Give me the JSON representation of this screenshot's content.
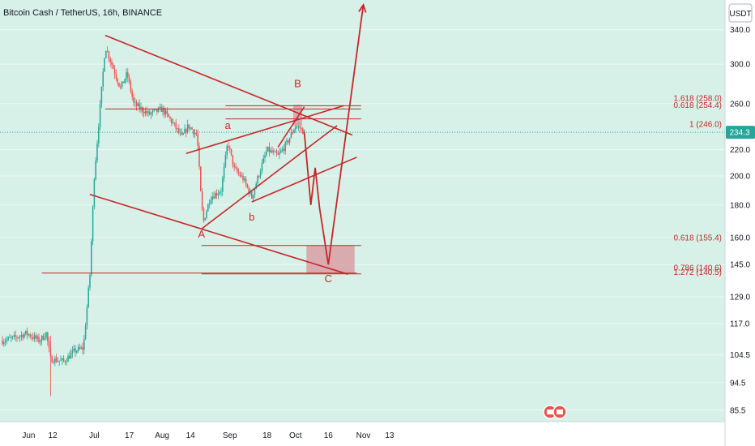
{
  "header": {
    "title": "Bitcoin Cash / TetherUS, 16h, BINANCE",
    "currency": "USDT"
  },
  "colors": {
    "background": "#d7f0e8",
    "annotation": "#c62828",
    "zone_fill": "#d99aa0",
    "candle_up": "#26a69a",
    "candle_down": "#ef5350",
    "last_price_bg": "#26a69a"
  },
  "chart_data": {
    "type": "candlestick",
    "y_scale": "log",
    "ylim": [
      82,
      372
    ],
    "y_ticks": [
      {
        "label": "340.0",
        "value": 340
      },
      {
        "label": "300.0",
        "value": 300
      },
      {
        "label": "260.0",
        "value": 260
      },
      {
        "label": "220.0",
        "value": 220
      },
      {
        "label": "200.0",
        "value": 200
      },
      {
        "label": "180.0",
        "value": 180
      },
      {
        "label": "160.0",
        "value": 160
      },
      {
        "label": "145.0",
        "value": 145
      },
      {
        "label": "129.0",
        "value": 129
      },
      {
        "label": "117.0",
        "value": 117
      },
      {
        "label": "104.5",
        "value": 104.5
      },
      {
        "label": "94.5",
        "value": 94.5
      },
      {
        "label": "85.5",
        "value": 85.5
      }
    ],
    "x_ticks": [
      "Jun",
      "12",
      "Jul",
      "17",
      "Aug",
      "14",
      "Sep",
      "18",
      "Oct",
      "16",
      "Nov",
      "13"
    ],
    "last_price": {
      "label": "234.3",
      "value": 234.3
    },
    "price_path": [
      {
        "d": "May 20",
        "v": 110
      },
      {
        "d": "May 25",
        "v": 111
      },
      {
        "d": "May 31",
        "v": 113
      },
      {
        "d": "Jun 6",
        "v": 110
      },
      {
        "d": "Jun 9",
        "v": 113
      },
      {
        "d": "Jun 11",
        "v": 103
      },
      {
        "d": "Jun 17",
        "v": 102
      },
      {
        "d": "Jun 22",
        "v": 106
      },
      {
        "d": "Jun 26",
        "v": 107
      },
      {
        "d": "Jun 29",
        "v": 140
      },
      {
        "d": "Jul 1",
        "v": 200
      },
      {
        "d": "Jul 4",
        "v": 265
      },
      {
        "d": "Jul 6",
        "v": 320
      },
      {
        "d": "Jul 9",
        "v": 300
      },
      {
        "d": "Jul 13",
        "v": 275
      },
      {
        "d": "Jul 16",
        "v": 290
      },
      {
        "d": "Jul 19",
        "v": 260
      },
      {
        "d": "Jul 26",
        "v": 250
      },
      {
        "d": "Aug 1",
        "v": 255
      },
      {
        "d": "Aug 6",
        "v": 242
      },
      {
        "d": "Aug 10",
        "v": 230
      },
      {
        "d": "Aug 13",
        "v": 240
      },
      {
        "d": "Aug 17",
        "v": 232
      },
      {
        "d": "Aug 19",
        "v": 180
      },
      {
        "d": "Aug 20",
        "v": 170
      },
      {
        "d": "Aug 23",
        "v": 185
      },
      {
        "d": "Aug 28",
        "v": 190
      },
      {
        "d": "Aug 31",
        "v": 226
      },
      {
        "d": "Sep 3",
        "v": 205
      },
      {
        "d": "Sep 7",
        "v": 198
      },
      {
        "d": "Sep 11",
        "v": 185
      },
      {
        "d": "Sep 14",
        "v": 200
      },
      {
        "d": "Sep 18",
        "v": 220
      },
      {
        "d": "Sep 23",
        "v": 215
      },
      {
        "d": "Sep 27",
        "v": 225
      },
      {
        "d": "Oct 1",
        "v": 240
      },
      {
        "d": "Oct 3",
        "v": 238
      },
      {
        "d": "Oct 5",
        "v": 234.3
      }
    ],
    "fib_levels": [
      {
        "label": "1.618 (258.0)",
        "value": 258.0
      },
      {
        "label": "0.618 (254.4)",
        "value": 254.4
      },
      {
        "label": "1 (246.0)",
        "value": 246.0
      },
      {
        "label": "0.618 (155.4)",
        "value": 155.4
      },
      {
        "label": "0.786 (140.6)",
        "value": 140.6
      },
      {
        "label": "1.272 (140.5)",
        "value": 140.5
      }
    ],
    "wave_labels": [
      {
        "text": "A",
        "d": "Aug 19",
        "v": 160
      },
      {
        "text": "a",
        "d": "Aug 31",
        "v": 237
      },
      {
        "text": "b",
        "d": "Sep 11",
        "v": 170
      },
      {
        "text": "B",
        "d": "Oct 2",
        "v": 276
      },
      {
        "text": "C",
        "d": "Oct 16",
        "v": 136
      }
    ],
    "trendlines": [
      {
        "from": {
          "d": "Jul 6",
          "v": 333
        },
        "to": {
          "d": "Oct 27",
          "v": 232
        }
      },
      {
        "from": {
          "d": "Jun 29",
          "v": 187
        },
        "to": {
          "d": "Oct 25",
          "v": 140
        }
      },
      {
        "from": {
          "d": "Aug 12",
          "v": 217
        },
        "to": {
          "d": "Oct 23",
          "v": 258
        }
      },
      {
        "from": {
          "d": "Aug 19",
          "v": 165
        },
        "to": {
          "d": "Oct 20",
          "v": 240
        }
      },
      {
        "from": {
          "d": "Sep 11",
          "v": 182
        },
        "to": {
          "d": "Oct 29",
          "v": 214
        }
      },
      {
        "from": {
          "d": "Sep 23",
          "v": 222
        },
        "to": {
          "d": "Oct 5",
          "v": 257
        }
      }
    ],
    "projection": [
      {
        "d": "Oct 5",
        "v": 234.3
      },
      {
        "d": "Oct 8",
        "v": 180
      },
      {
        "d": "Oct 10",
        "v": 206
      },
      {
        "d": "Oct 12",
        "v": 178
      },
      {
        "d": "Oct 16",
        "v": 145
      },
      {
        "d": "Nov 1",
        "v": 372
      }
    ],
    "horizontal_lines": [
      {
        "v": 140.6,
        "from": "Jun 7",
        "to": "Oct 29"
      },
      {
        "v": 255,
        "from": "Jul 6",
        "to": "Oct 31"
      },
      {
        "v": 258,
        "from": "Aug 30",
        "to": "Oct 31"
      },
      {
        "v": 246,
        "from": "Aug 30",
        "to": "Oct 31"
      },
      {
        "v": 155.4,
        "from": "Aug 19",
        "to": "Oct 31"
      },
      {
        "v": 140.2,
        "from": "Aug 19",
        "to": "Oct 31"
      }
    ],
    "zones": [
      {
        "from": "Sep 30",
        "to": "Oct 4",
        "top": 259,
        "bottom": 240
      },
      {
        "from": "Oct 6",
        "to": "Oct 28",
        "top": 155.4,
        "bottom": 140.4
      }
    ]
  }
}
